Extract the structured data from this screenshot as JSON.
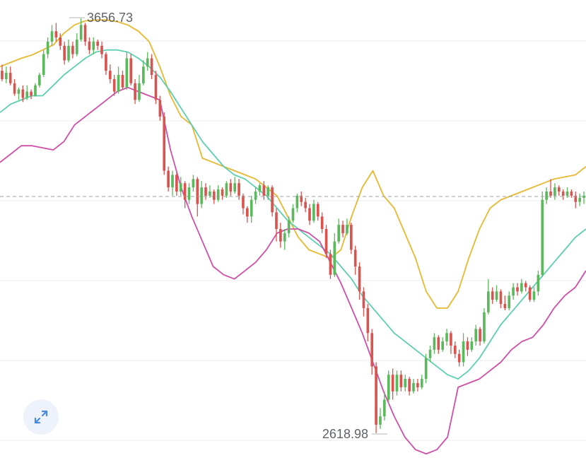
{
  "expand_button": {
    "icon": "expand-arrows-icon"
  },
  "chart_data": {
    "type": "candlestick",
    "ylim": [
      2600,
      3700
    ],
    "grid": true,
    "colors": {
      "up": "#5cb85c",
      "down": "#d9534f",
      "upper_band": "#e8b830",
      "middle_band": "#5ccfb0",
      "lower_band": "#cf4fa6"
    },
    "annotations": {
      "high_label": "3656.73",
      "low_label": "2618.98",
      "current_price": 3228
    },
    "candles": [
      [
        3530,
        3510,
        3545,
        3505
      ],
      [
        3510,
        3525,
        3540,
        3500
      ],
      [
        3525,
        3500,
        3540,
        3495
      ],
      [
        3500,
        3475,
        3510,
        3470
      ],
      [
        3475,
        3485,
        3490,
        3460
      ],
      [
        3485,
        3465,
        3495,
        3455
      ],
      [
        3465,
        3480,
        3495,
        3460
      ],
      [
        3480,
        3470,
        3485,
        3462
      ],
      [
        3470,
        3495,
        3500,
        3468
      ],
      [
        3495,
        3520,
        3525,
        3490
      ],
      [
        3520,
        3570,
        3580,
        3515
      ],
      [
        3570,
        3600,
        3610,
        3560
      ],
      [
        3600,
        3625,
        3640,
        3590
      ],
      [
        3625,
        3610,
        3645,
        3600
      ],
      [
        3610,
        3590,
        3620,
        3580
      ],
      [
        3590,
        3555,
        3600,
        3545
      ],
      [
        3555,
        3590,
        3605,
        3550
      ],
      [
        3590,
        3570,
        3600,
        3560
      ],
      [
        3570,
        3605,
        3620,
        3565
      ],
      [
        3605,
        3640,
        3656,
        3600
      ],
      [
        3640,
        3600,
        3645,
        3590
      ],
      [
        3600,
        3580,
        3610,
        3570
      ],
      [
        3580,
        3600,
        3610,
        3570
      ],
      [
        3600,
        3590,
        3605,
        3580
      ],
      [
        3590,
        3570,
        3600,
        3560
      ],
      [
        3570,
        3530,
        3575,
        3520
      ],
      [
        3530,
        3510,
        3545,
        3500
      ],
      [
        3510,
        3480,
        3520,
        3470
      ],
      [
        3480,
        3520,
        3540,
        3475
      ],
      [
        3520,
        3490,
        3530,
        3485
      ],
      [
        3490,
        3560,
        3575,
        3485
      ],
      [
        3560,
        3500,
        3570,
        3495
      ],
      [
        3500,
        3460,
        3510,
        3450
      ],
      [
        3460,
        3500,
        3520,
        3455
      ],
      [
        3500,
        3540,
        3555,
        3495
      ],
      [
        3540,
        3560,
        3575,
        3530
      ],
      [
        3560,
        3520,
        3570,
        3510
      ],
      [
        3520,
        3460,
        3530,
        3450
      ],
      [
        3460,
        3420,
        3470,
        3410
      ],
      [
        3420,
        3290,
        3430,
        3280
      ],
      [
        3290,
        3250,
        3300,
        3240
      ],
      [
        3250,
        3280,
        3290,
        3230
      ],
      [
        3280,
        3240,
        3285,
        3230
      ],
      [
        3240,
        3260,
        3275,
        3230
      ],
      [
        3260,
        3220,
        3265,
        3200
      ],
      [
        3220,
        3250,
        3260,
        3210
      ],
      [
        3250,
        3270,
        3280,
        3240
      ],
      [
        3270,
        3210,
        3275,
        3180
      ],
      [
        3210,
        3250,
        3265,
        3200
      ],
      [
        3250,
        3230,
        3260,
        3220
      ],
      [
        3230,
        3240,
        3255,
        3225
      ],
      [
        3240,
        3220,
        3245,
        3210
      ],
      [
        3220,
        3245,
        3255,
        3215
      ],
      [
        3245,
        3230,
        3250,
        3220
      ],
      [
        3230,
        3260,
        3265,
        3225
      ],
      [
        3260,
        3240,
        3270,
        3230
      ],
      [
        3240,
        3260,
        3275,
        3235
      ],
      [
        3260,
        3230,
        3270,
        3220
      ],
      [
        3230,
        3200,
        3235,
        3185
      ],
      [
        3200,
        3180,
        3205,
        3165
      ],
      [
        3180,
        3220,
        3230,
        3165
      ],
      [
        3220,
        3240,
        3250,
        3210
      ],
      [
        3240,
        3255,
        3260,
        3230
      ],
      [
        3255,
        3230,
        3265,
        3220
      ],
      [
        3230,
        3250,
        3255,
        3220
      ],
      [
        3250,
        3190,
        3255,
        3180
      ],
      [
        3190,
        3150,
        3200,
        3120
      ],
      [
        3150,
        3120,
        3165,
        3105
      ],
      [
        3120,
        3140,
        3150,
        3100
      ],
      [
        3140,
        3170,
        3180,
        3130
      ],
      [
        3170,
        3200,
        3210,
        3165
      ],
      [
        3200,
        3230,
        3235,
        3190
      ],
      [
        3230,
        3215,
        3240,
        3205
      ],
      [
        3215,
        3200,
        3225,
        3190
      ],
      [
        3200,
        3170,
        3210,
        3160
      ],
      [
        3170,
        3210,
        3220,
        3165
      ],
      [
        3210,
        3180,
        3215,
        3170
      ],
      [
        3180,
        3150,
        3190,
        3140
      ],
      [
        3150,
        3090,
        3160,
        3080
      ],
      [
        3090,
        3040,
        3100,
        3030
      ],
      [
        3040,
        3120,
        3140,
        3035
      ],
      [
        3120,
        3160,
        3175,
        3115
      ],
      [
        3160,
        3140,
        3170,
        3130
      ],
      [
        3140,
        3160,
        3175,
        3135
      ],
      [
        3160,
        3100,
        3165,
        3090
      ],
      [
        3100,
        3060,
        3110,
        3040
      ],
      [
        3060,
        3000,
        3070,
        2980
      ],
      [
        3000,
        2960,
        3010,
        2940
      ],
      [
        2960,
        2900,
        2970,
        2880
      ],
      [
        2900,
        2820,
        2910,
        2800
      ],
      [
        2820,
        2680,
        2830,
        2660
      ],
      [
        2680,
        2700,
        2720,
        2670
      ],
      [
        2700,
        2740,
        2760,
        2690
      ],
      [
        2740,
        2800,
        2810,
        2730
      ],
      [
        2800,
        2760,
        2815,
        2740
      ],
      [
        2760,
        2800,
        2810,
        2750
      ],
      [
        2800,
        2770,
        2810,
        2760
      ],
      [
        2770,
        2790,
        2800,
        2760
      ],
      [
        2790,
        2760,
        2795,
        2750
      ],
      [
        2760,
        2780,
        2790,
        2755
      ],
      [
        2780,
        2770,
        2790,
        2760
      ],
      [
        2770,
        2790,
        2800,
        2765
      ],
      [
        2790,
        2840,
        2850,
        2780
      ],
      [
        2840,
        2860,
        2870,
        2830
      ],
      [
        2860,
        2890,
        2900,
        2850
      ],
      [
        2890,
        2860,
        2895,
        2850
      ],
      [
        2860,
        2880,
        2890,
        2855
      ],
      [
        2880,
        2900,
        2910,
        2870
      ],
      [
        2900,
        2870,
        2905,
        2850
      ],
      [
        2870,
        2850,
        2880,
        2840
      ],
      [
        2850,
        2830,
        2860,
        2820
      ],
      [
        2830,
        2880,
        2900,
        2820
      ],
      [
        2880,
        2860,
        2890,
        2845
      ],
      [
        2860,
        2880,
        2890,
        2855
      ],
      [
        2880,
        2910,
        2920,
        2870
      ],
      [
        2910,
        2880,
        2915,
        2870
      ],
      [
        2880,
        2950,
        2960,
        2875
      ],
      [
        2950,
        3000,
        3030,
        2945
      ],
      [
        3000,
        2980,
        3010,
        2970
      ],
      [
        2980,
        3000,
        3015,
        2975
      ],
      [
        3000,
        2970,
        3005,
        2960
      ],
      [
        2970,
        2960,
        2990,
        2955
      ],
      [
        2960,
        2990,
        3000,
        2955
      ],
      [
        2990,
        3010,
        3020,
        2980
      ],
      [
        3010,
        3000,
        3020,
        2990
      ],
      [
        3000,
        3020,
        3030,
        2995
      ],
      [
        3020,
        3010,
        3025,
        3000
      ],
      [
        3010,
        2980,
        3015,
        2975
      ],
      [
        2980,
        3000,
        3010,
        2975
      ],
      [
        3000,
        3040,
        3050,
        2990
      ],
      [
        3040,
        3220,
        3240,
        3035
      ],
      [
        3220,
        3240,
        3250,
        3210
      ],
      [
        3240,
        3230,
        3270,
        3225
      ],
      [
        3230,
        3250,
        3260,
        3220
      ],
      [
        3250,
        3240,
        3255,
        3230
      ],
      [
        3240,
        3230,
        3245,
        3220
      ],
      [
        3230,
        3240,
        3250,
        3225
      ],
      [
        3240,
        3230,
        3245,
        3225
      ],
      [
        3230,
        3215,
        3240,
        3200
      ],
      [
        3215,
        3225,
        3235,
        3205
      ],
      [
        3225,
        3230,
        3240,
        3210
      ]
    ],
    "upper_band": [
      3540,
      3550,
      3560,
      3568,
      3580,
      3592,
      3620,
      3640,
      3650,
      3652,
      3652,
      3648,
      3640,
      3625,
      3600,
      3540,
      3470,
      3420,
      3400,
      3320,
      3310,
      3300,
      3290,
      3280,
      3270,
      3250,
      3230,
      3180,
      3130,
      3100,
      3090,
      3080,
      3100,
      3180,
      3250,
      3290,
      3230,
      3200,
      3140,
      3080,
      3000,
      2960,
      2960,
      3000,
      3080,
      3150,
      3200,
      3220,
      3230,
      3240,
      3250,
      3260,
      3270,
      3275,
      3280,
      3300
    ],
    "middle_band": [
      3430,
      3450,
      3460,
      3470,
      3470,
      3495,
      3520,
      3540,
      3560,
      3575,
      3580,
      3580,
      3575,
      3560,
      3540,
      3515,
      3480,
      3440,
      3400,
      3360,
      3330,
      3300,
      3280,
      3270,
      3250,
      3230,
      3200,
      3170,
      3150,
      3130,
      3110,
      3090,
      3060,
      3030,
      2990,
      2960,
      2930,
      2900,
      2880,
      2860,
      2840,
      2820,
      2800,
      2790,
      2810,
      2840,
      2880,
      2920,
      2950,
      2980,
      3010,
      3040,
      3070,
      3100,
      3130,
      3150
    ],
    "lower_band": [
      3310,
      3330,
      3350,
      3350,
      3345,
      3340,
      3360,
      3400,
      3420,
      3440,
      3460,
      3480,
      3490,
      3480,
      3470,
      3460,
      3340,
      3250,
      3180,
      3120,
      3060,
      3040,
      3030,
      3050,
      3070,
      3100,
      3140,
      3150,
      3150,
      3140,
      3120,
      3070,
      3020,
      2960,
      2900,
      2830,
      2760,
      2700,
      2650,
      2620,
      2610,
      2620,
      2650,
      2770,
      2780,
      2790,
      2810,
      2830,
      2860,
      2880,
      2890,
      2920,
      2960,
      2990,
      3010,
      3050
    ]
  }
}
